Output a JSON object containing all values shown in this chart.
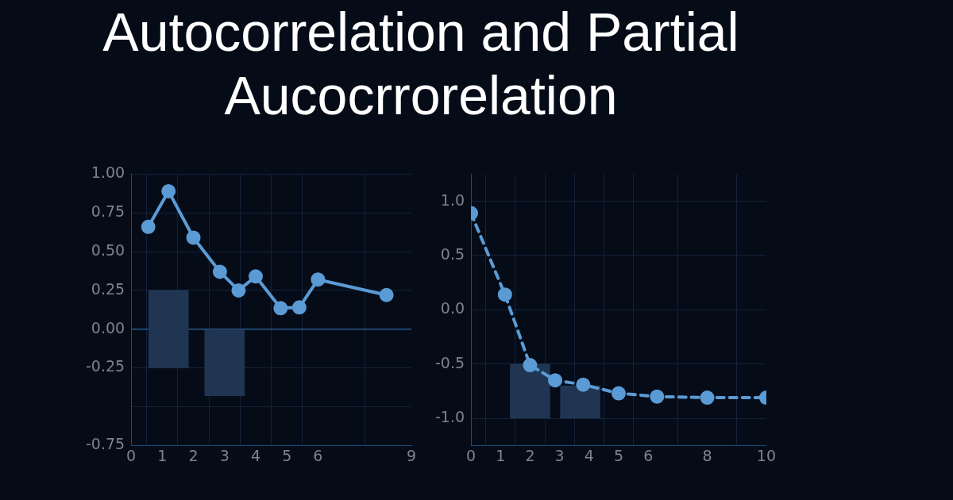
{
  "chart_data": [
    {
      "type": "line",
      "title": "Autocorrelation and Partial Aucocrrorelation",
      "xlim": [
        0,
        9
      ],
      "xticks": [
        0,
        1,
        2,
        3,
        4,
        5,
        6,
        9
      ],
      "ylim": [
        -0.75,
        1.0
      ],
      "yticks": [
        {
          "value": -0.75,
          "label": "-0.75"
        },
        {
          "value": -0.5,
          "label": null
        },
        {
          "value": -0.25,
          "label": "-0.25"
        },
        {
          "value": 0,
          "label": "0.00"
        },
        {
          "value": 0.25,
          "label": "0.25"
        },
        {
          "value": 0.5,
          "label": "0.50"
        },
        {
          "value": 0.75,
          "label": "0.75"
        },
        {
          "value": 1.0,
          "label": "1.00"
        }
      ],
      "grid": true,
      "legend": false,
      "ref_lines": [
        {
          "axis": "y",
          "value": 0,
          "color": "#2b5a8c"
        }
      ],
      "series": [
        {
          "type": "bar",
          "color": "#1f3552",
          "x": [
            1.2,
            3
          ],
          "base": [
            -0.25,
            0
          ],
          "values": [
            0.5,
            -0.43
          ]
        },
        {
          "color": "#5b9bd5",
          "marker": "circle",
          "line_style": "solid",
          "x": [
            0.55,
            1.2,
            2,
            2.85,
            3.45,
            4,
            4.8,
            5.4,
            6,
            8.2
          ],
          "values": [
            0.66,
            0.89,
            0.59,
            0.37,
            0.25,
            0.34,
            0.135,
            0.14,
            0.32,
            0.22
          ]
        }
      ]
    },
    {
      "type": "line",
      "xlim": [
        0,
        10
      ],
      "xticks": [
        0,
        1,
        2,
        3,
        4,
        5,
        6,
        8,
        10
      ],
      "ylim": [
        -1.25,
        1.25
      ],
      "yticks": [
        {
          "value": -1,
          "label": "-1.0"
        },
        -0.5,
        {
          "value": 0,
          "label": "0.0"
        },
        0.5,
        {
          "value": 1,
          "label": "1.0"
        }
      ],
      "grid": true,
      "legend": false,
      "series": [
        {
          "type": "bar",
          "color": "#1f3552",
          "x": [
            2,
            3.7
          ],
          "base": [
            -1.0,
            -1.0
          ],
          "values": [
            0.5,
            0.3
          ]
        },
        {
          "color": "#5b9bd5",
          "marker": "circle",
          "line_style": "dashed",
          "x": [
            0,
            1.15,
            2,
            2.85,
            3.8,
            5,
            6.3,
            8,
            10
          ],
          "values": [
            0.89,
            0.14,
            -0.51,
            -0.65,
            -0.69,
            -0.77,
            -0.8,
            -0.81,
            -0.81
          ]
        }
      ]
    }
  ]
}
